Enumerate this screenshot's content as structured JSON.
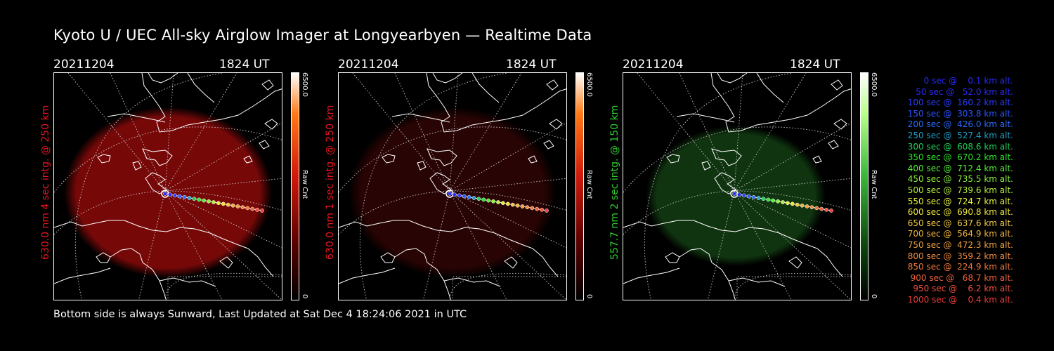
{
  "title": "Kyoto U / UEC All-sky Airglow Imager at Longyearbyen — Realtime Data",
  "footer": "Bottom side is always Sunward, Last Updated at Sat Dec  4 18:24:06 2021 in UTC",
  "panels": [
    {
      "date": "20211204",
      "time": "1824 UT",
      "side_label": "630.0 nm 4 sec intg. @ 250 km",
      "side_color": "#e8141e",
      "glow_color": "#8c0a0a",
      "glow_opacity": 0.85,
      "cbar_top": "6500.0",
      "cbar_mid": "Raw Cnt",
      "cbar_bot": "0",
      "cbar_gradient": [
        "#ff7a14",
        "#d11a0a",
        "#5a0000",
        "#000000"
      ]
    },
    {
      "date": "20211204",
      "time": "1824 UT",
      "side_label": "630.0 nm 1 sec intg. @ 250 km",
      "side_color": "#e8141e",
      "glow_color": "#3a0505",
      "glow_opacity": 0.7,
      "cbar_top": "6500.0",
      "cbar_mid": "Raw Cnt",
      "cbar_bot": "0",
      "cbar_gradient": [
        "#ff7a14",
        "#d11a0a",
        "#5a0000",
        "#000000"
      ]
    },
    {
      "date": "20211204",
      "time": "1824 UT",
      "side_label": "557.7 nm 2 sec intg. @ 150 km",
      "side_color": "#2ecc2e",
      "glow_color": "#123d12",
      "glow_opacity": 0.85,
      "cbar_top": "6500.0",
      "cbar_mid": "Raw Cnt",
      "cbar_bot": "0",
      "cbar_gradient": [
        "#b8ff8a",
        "#3cb83c",
        "#0e4a0e",
        "#000000"
      ]
    }
  ],
  "legend": [
    {
      "text": "   0 sec @    0.1 km alt.",
      "color": "#2a2aff"
    },
    {
      "text": "  50 sec @   52.0 km alt.",
      "color": "#2a2aff"
    },
    {
      "text": " 100 sec @  160.2 km alt.",
      "color": "#2a3cff"
    },
    {
      "text": " 150 sec @  303.8 km alt.",
      "color": "#2a55ff"
    },
    {
      "text": " 200 sec @  426.0 km alt.",
      "color": "#2a6cff"
    },
    {
      "text": " 250 sec @  527.4 km alt.",
      "color": "#1e9ec8"
    },
    {
      "text": " 300 sec @  608.6 km alt.",
      "color": "#1ed25a"
    },
    {
      "text": " 350 sec @  670.2 km alt.",
      "color": "#2ae62a"
    },
    {
      "text": " 400 sec @  712.4 km alt.",
      "color": "#50f032"
    },
    {
      "text": " 450 sec @  735.5 km alt.",
      "color": "#8cf03c"
    },
    {
      "text": " 500 sec @  739.6 km alt.",
      "color": "#b4f03c"
    },
    {
      "text": " 550 sec @  724.7 km alt.",
      "color": "#e6f03c"
    },
    {
      "text": " 600 sec @  690.8 km alt.",
      "color": "#f0e63c"
    },
    {
      "text": " 650 sec @  637.6 km alt.",
      "color": "#f0c83c"
    },
    {
      "text": " 700 sec @  564.9 km alt.",
      "color": "#f0b43c"
    },
    {
      "text": " 750 sec @  472.3 km alt.",
      "color": "#f0a03c"
    },
    {
      "text": " 800 sec @  359.2 km alt.",
      "color": "#f08c3c"
    },
    {
      "text": " 850 sec @  224.9 km alt.",
      "color": "#f0783c"
    },
    {
      "text": " 900 sec @   68.7 km alt.",
      "color": "#f0643c"
    },
    {
      "text": " 950 sec @    6.2 km alt.",
      "color": "#f0503c"
    },
    {
      "text": "1000 sec @    0.4 km alt.",
      "color": "#f03c3c"
    }
  ]
}
